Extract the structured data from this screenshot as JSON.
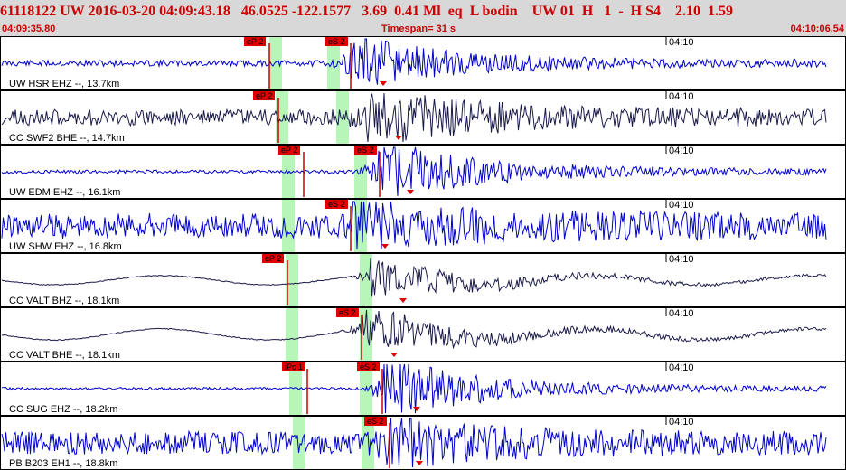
{
  "header": {
    "event_line": "61118122 UW 2016-03-20 04:09:43.18   46.0525 -122.1577   3.69  0.41 Ml  eq  L bodin    UW 01  H   1  -  H S4    2.10  1.59",
    "start_time": "04:09:35.80",
    "timespan": "Timespan=  31 s",
    "end_time": "04:10:06.54"
  },
  "colors": {
    "header_bg": "#d8d8d8",
    "header_text": "#cc0000",
    "trace_blue": "#0000cc",
    "trace_dark": "#1a1a4a",
    "pick_tag": "#e00000",
    "pick_band": "#b8f5b8"
  },
  "traces": [
    {
      "label": "UW HSR EHZ --, 13.7km",
      "minute_label": "04:10",
      "color": "#0000cc",
      "p_pick": "eP 2",
      "s_pick": "eS 2",
      "noise": 0.12,
      "burst": 0.45,
      "seed": 11,
      "wave": 0.0
    },
    {
      "label": "CC SWF2 BHE --, 14.7km",
      "minute_label": "04:10",
      "color": "#1a1a4a",
      "p_pick": "eP 2",
      "s_pick": "",
      "noise": 0.32,
      "burst": 0.45,
      "seed": 23,
      "wave": 0.0
    },
    {
      "label": "UW EDM EHZ --, 16.1km",
      "minute_label": "04:10",
      "color": "#0000cc",
      "p_pick": "eP 2",
      "s_pick": "eS 2",
      "noise": 0.07,
      "burst": 0.55,
      "seed": 37,
      "wave": 0.0
    },
    {
      "label": "UW SHW EHZ --, 16.8km",
      "minute_label": "04:10",
      "color": "#0000cc",
      "p_pick": "",
      "s_pick": "eS 2",
      "noise": 0.5,
      "burst": 0.35,
      "seed": 41,
      "wave": 0.0
    },
    {
      "label": "CC VALT BHZ --, 18.1km",
      "minute_label": "04:10",
      "color": "#1a1a4a",
      "p_pick": "eP 2",
      "s_pick": "",
      "noise": 0.02,
      "burst": 0.35,
      "seed": 53,
      "wave": 0.18
    },
    {
      "label": "CC VALT BHE --, 18.1km",
      "minute_label": "04:10",
      "color": "#1a1a4a",
      "p_pick": "",
      "s_pick": "eS 2",
      "noise": 0.02,
      "burst": 0.4,
      "seed": 67,
      "wave": 0.22
    },
    {
      "label": "CC SUG EHZ --, 18.2km",
      "minute_label": "04:10",
      "color": "#0000cc",
      "p_pick": "iPc 1",
      "s_pick": "eS 2",
      "noise": 0.05,
      "burst": 0.55,
      "seed": 71,
      "wave": 0.0
    },
    {
      "label": "PB B203 EH1 --, 18.8km",
      "minute_label": "04:10",
      "color": "#0000cc",
      "p_pick": "",
      "s_pick": "eS 2",
      "noise": 0.45,
      "burst": 0.3,
      "seed": 89,
      "wave": 0.0
    }
  ]
}
